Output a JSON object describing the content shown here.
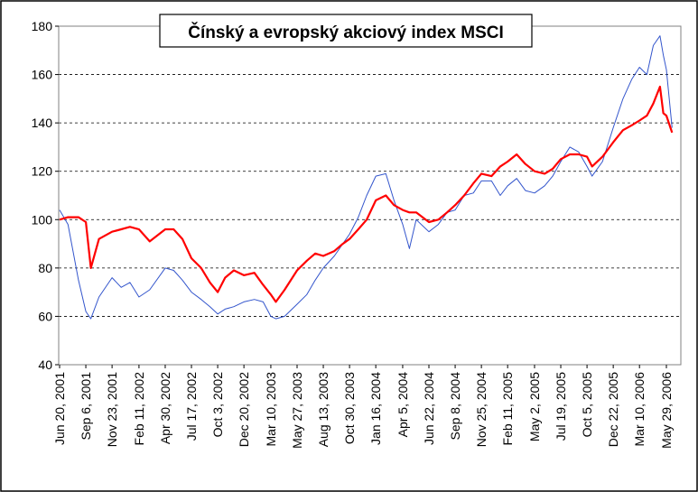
{
  "chart_data": {
    "type": "line",
    "title": "Čínský a evropský akciový index MSCI",
    "xlabel": "",
    "ylabel": "",
    "ylim": [
      40,
      180
    ],
    "yticks": [
      40,
      60,
      80,
      100,
      120,
      140,
      160,
      180
    ],
    "grid": "horizontal dashed at y ticks",
    "legend": "none",
    "x_tick_labels": [
      "Jun 20, 2001",
      "Sep 6, 2001",
      "Nov 23, 2001",
      "Feb 11, 2002",
      "Apr 30, 2002",
      "Jul 17, 2002",
      "Oct 3, 2002",
      "Dec 20, 2002",
      "Mar 10, 2003",
      "May 27, 2003",
      "Aug 13, 2003",
      "Oct 30, 2003",
      "Jan 16, 2004",
      "Apr 5, 2004",
      "Jun 22, 2004",
      "Sep 8, 2004",
      "Nov 25, 2004",
      "Feb 11, 2005",
      "May 2, 2005",
      "Jul 19, 2005",
      "Oct 5, 2005",
      "Dec 22, 2005",
      "Mar 10, 2006",
      "May 29, 2006"
    ],
    "x": [
      "Jun 20, 2001",
      "Jul 15, 2001",
      "Aug 15, 2001",
      "Sep 6, 2001",
      "Sep 21, 2001",
      "Oct 15, 2001",
      "Nov 23, 2001",
      "Dec 20, 2001",
      "Jan 15, 2002",
      "Feb 11, 2002",
      "Mar 15, 2002",
      "Apr 30, 2002",
      "May 25, 2002",
      "Jun 20, 2002",
      "Jul 17, 2002",
      "Aug 15, 2002",
      "Sep 10, 2002",
      "Oct 3, 2002",
      "Oct 25, 2002",
      "Nov 20, 2002",
      "Dec 20, 2002",
      "Jan 20, 2003",
      "Feb 15, 2003",
      "Mar 10, 2003",
      "Mar 25, 2003",
      "Apr 20, 2003",
      "May 27, 2003",
      "Jun 25, 2003",
      "Jul 20, 2003",
      "Aug 13, 2003",
      "Sep 15, 2003",
      "Oct 10, 2003",
      "Oct 30, 2003",
      "Nov 25, 2003",
      "Dec 20, 2003",
      "Jan 16, 2004",
      "Feb 15, 2004",
      "Mar 10, 2004",
      "Apr 5, 2004",
      "Apr 25, 2004",
      "May 15, 2004",
      "Jun 22, 2004",
      "Jul 20, 2004",
      "Aug 15, 2004",
      "Sep 8, 2004",
      "Oct 5, 2004",
      "Nov 1, 2004",
      "Nov 25, 2004",
      "Dec 25, 2004",
      "Jan 20, 2005",
      "Feb 11, 2005",
      "Mar 10, 2005",
      "Apr 5, 2005",
      "May 2, 2005",
      "Jun 1, 2005",
      "Jun 25, 2005",
      "Jul 19, 2005",
      "Aug 15, 2005",
      "Sep 10, 2005",
      "Oct 5, 2005",
      "Oct 20, 2005",
      "Nov 20, 2005",
      "Dec 22, 2005",
      "Jan 20, 2006",
      "Feb 15, 2006",
      "Mar 10, 2006",
      "Apr 1, 2006",
      "Apr 20, 2006",
      "May 10, 2006",
      "May 20, 2006",
      "May 29, 2006",
      "Jun 15, 2006"
    ],
    "series": [
      {
        "color": "#ff0000",
        "values": [
          100,
          101,
          101,
          99,
          80,
          92,
          95,
          96,
          97,
          96,
          91,
          96,
          96,
          92,
          84,
          80,
          74,
          70,
          76,
          79,
          77,
          78,
          73,
          69,
          66,
          71,
          79,
          83,
          86,
          85,
          87,
          90,
          92,
          96,
          100,
          108,
          110,
          106,
          104,
          103,
          103,
          99,
          100,
          103,
          106,
          110,
          115,
          119,
          118,
          122,
          124,
          127,
          123,
          120,
          119,
          121,
          125,
          127,
          127,
          126,
          122,
          126,
          132,
          137,
          139,
          141,
          143,
          148,
          155,
          144,
          143,
          136
        ]
      },
      {
        "color": "#3355cc",
        "values": [
          104,
          98,
          75,
          62,
          59,
          68,
          76,
          72,
          74,
          68,
          71,
          80,
          79,
          75,
          70,
          67,
          64,
          61,
          63,
          64,
          66,
          67,
          66,
          60,
          59,
          60,
          65,
          69,
          75,
          80,
          85,
          90,
          94,
          101,
          110,
          118,
          119,
          108,
          98,
          88,
          100,
          95,
          98,
          103,
          104,
          110,
          111,
          116,
          116,
          110,
          114,
          117,
          112,
          111,
          114,
          118,
          124,
          130,
          128,
          122,
          118,
          124,
          138,
          150,
          158,
          163,
          160,
          172,
          176,
          168,
          162,
          138
        ]
      }
    ]
  }
}
